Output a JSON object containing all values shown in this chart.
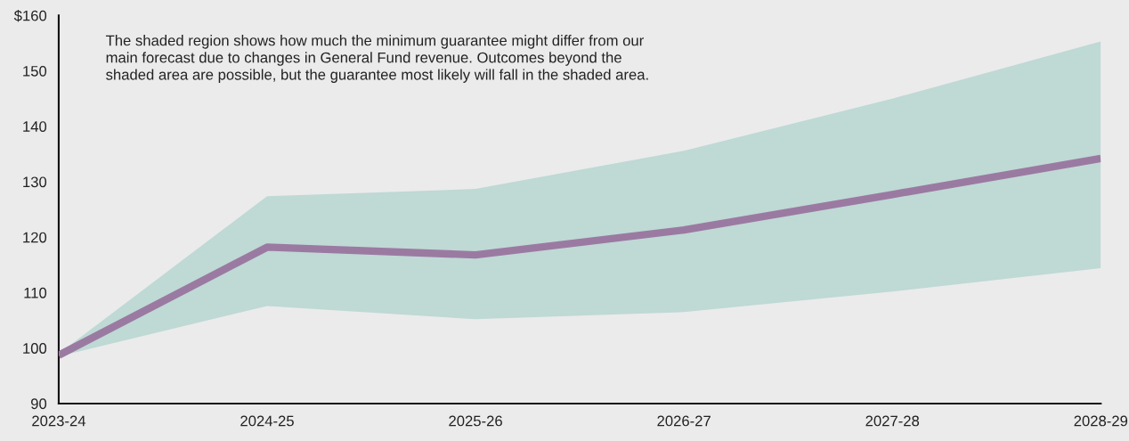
{
  "chart_data": {
    "type": "line",
    "categories": [
      "2023-24",
      "2024-25",
      "2025-26",
      "2026-27",
      "2027-28",
      "2028-29"
    ],
    "series": [
      {
        "color": "#9b7aa2",
        "values": [
          98.7,
          118.2,
          116.8,
          121.3,
          127.7,
          134.2
        ],
        "lower": [
          98.5,
          107.6,
          105.2,
          106.5,
          110.2,
          114.4
        ],
        "upper": [
          99.0,
          127.4,
          128.7,
          135.6,
          145.0,
          155.3
        ]
      }
    ],
    "ylim": [
      90,
      160
    ],
    "yticks": [
      90,
      100,
      110,
      120,
      130,
      140,
      150,
      {
        "value": 160,
        "label": "$160"
      }
    ],
    "annotations": [
      "The shaded region shows how much the minimum guarantee might differ from our main forecast due to changes in General Fund revenue. Outcomes beyond the shaded area are possible, but the guarantee most likely will fall in the shaded area."
    ],
    "grid": false,
    "marker": "none",
    "line_style": "solid"
  }
}
